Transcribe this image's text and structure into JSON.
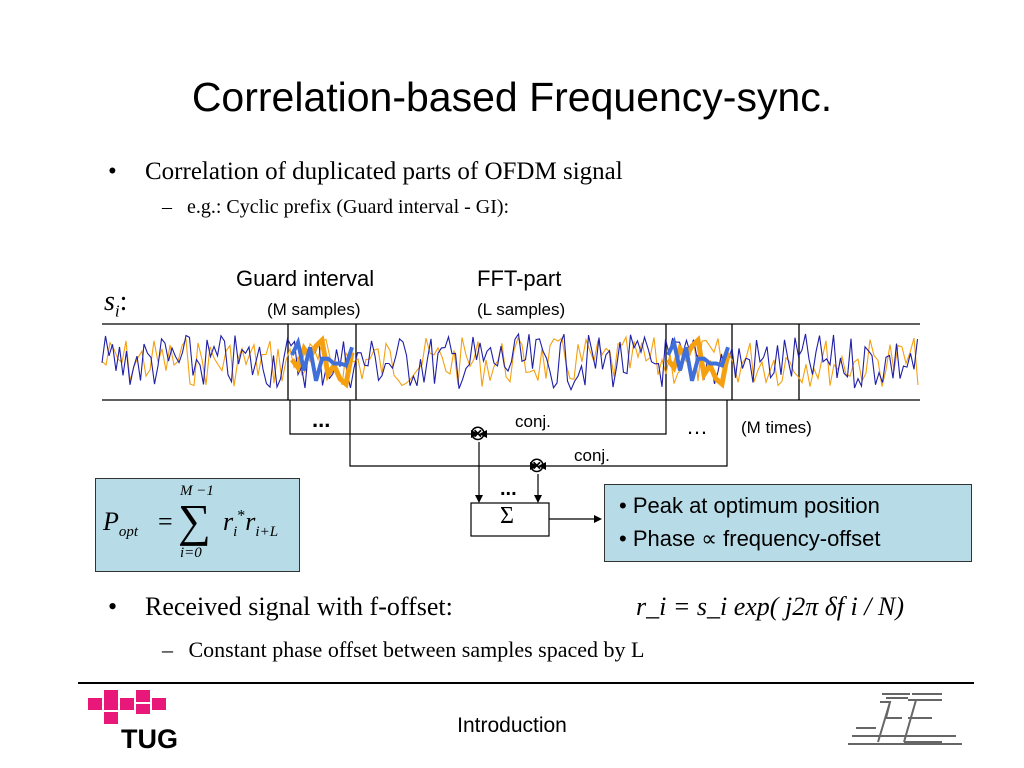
{
  "slide": {
    "title": "Correlation-based Frequency-sync.",
    "bullets": [
      {
        "marker": "•",
        "text": "Correlation of duplicated parts of OFDM signal",
        "sub": [
          {
            "marker": "–",
            "text": "e.g.: Cyclic prefix (Guard interval - GI):"
          }
        ]
      }
    ],
    "footer_text": "Introduction"
  },
  "diagram": {
    "signal_label": "s",
    "signal_subscript": "i",
    "signal_colon": ":",
    "guard_label": "Guard interval",
    "guard_sub": "(M samples)",
    "fft_label": "FFT-part",
    "fft_sub": "(L samples)",
    "conj1": "conj.",
    "conj2": "conj.",
    "dots_left": "...",
    "dots_right": "…",
    "dots_sum": "...",
    "m_times": "(M times)",
    "multiply_symbol": "⊗",
    "sum_symbol": "Σ",
    "colors": {
      "signal_blue": "#1f1fa8",
      "signal_orange": "#f5a011",
      "highlight_blue": "#3f6fd8",
      "box_fill": "#b7dce8"
    }
  },
  "formula_box": {
    "lhs": "P",
    "lhs_sub": "opt",
    "equals": "=",
    "sum_top": "M −1",
    "sum_bottom": "i=0",
    "sigma": "∑",
    "term_r1": "r",
    "term_r1_sub": "i",
    "term_star": "*",
    "term_r2": "r",
    "term_r2_sub": "i+L"
  },
  "result_box": {
    "line1": "• Peak at optimum position",
    "line2": "• Phase ∝ frequency-offset"
  },
  "received": {
    "marker": "•",
    "text": "Received signal with f-offset:",
    "formula": "r_i = s_i exp( j2π δf i / N)",
    "sub_marker": "–",
    "sub_text": "Constant phase offset between samples spaced by L"
  },
  "footer": {
    "logo_text": "TUG",
    "logo_color": "#e8177a",
    "right_logo_icon": "institute-logo"
  }
}
